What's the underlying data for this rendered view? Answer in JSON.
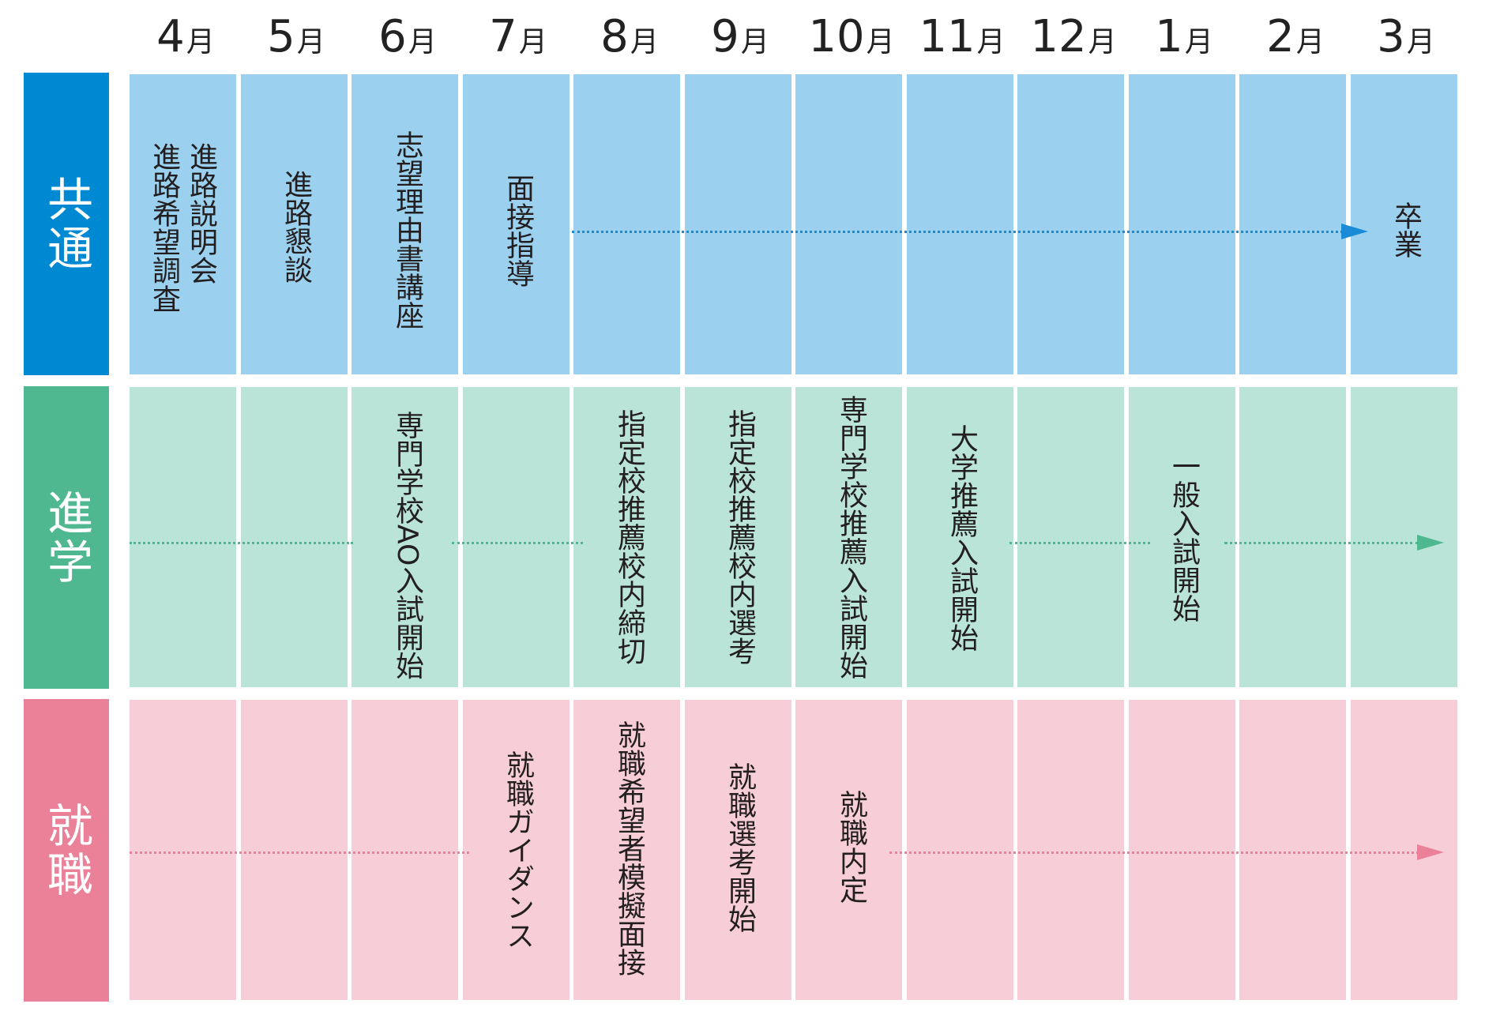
{
  "months": [
    {
      "num": "4",
      "unit": "月"
    },
    {
      "num": "5",
      "unit": "月"
    },
    {
      "num": "6",
      "unit": "月"
    },
    {
      "num": "7",
      "unit": "月"
    },
    {
      "num": "8",
      "unit": "月"
    },
    {
      "num": "9",
      "unit": "月"
    },
    {
      "num": "10",
      "unit": "月"
    },
    {
      "num": "11",
      "unit": "月"
    },
    {
      "num": "12",
      "unit": "月"
    },
    {
      "num": "1",
      "unit": "月"
    },
    {
      "num": "2",
      "unit": "月"
    },
    {
      "num": "3",
      "unit": "月"
    }
  ],
  "rows": {
    "common": {
      "label": "共通",
      "events": {
        "apr_1": "進路説明会",
        "apr_2": "進路希望調査",
        "may": "進路懇談",
        "jun": "志望理由書講座",
        "jul": "面接指導",
        "mar": "卒業"
      }
    },
    "advance": {
      "label": "進学",
      "events": {
        "jun": "専門学校AO入試開始",
        "aug": "指定校推薦校内締切",
        "sep": "指定校推薦校内選考",
        "oct": "専門学校推薦入試開始",
        "nov": "大学推薦入試開始",
        "jan": "一般入試開始"
      }
    },
    "job": {
      "label": "就職",
      "events": {
        "jul": "就職ガイダンス",
        "aug": "就職希望者模擬面接",
        "sep": "就職選考開始",
        "oct": "就職内定"
      }
    }
  },
  "colors": {
    "common_label": "#0089d3",
    "common_cell": "#9bd1ef",
    "common_arrow": "#1a8bd6",
    "advance_label": "#4fb890",
    "advance_cell": "#bae4d7",
    "advance_arrow": "#4fb890",
    "job_label": "#eb8198",
    "job_cell": "#f7ced7",
    "job_arrow": "#eb8198"
  }
}
